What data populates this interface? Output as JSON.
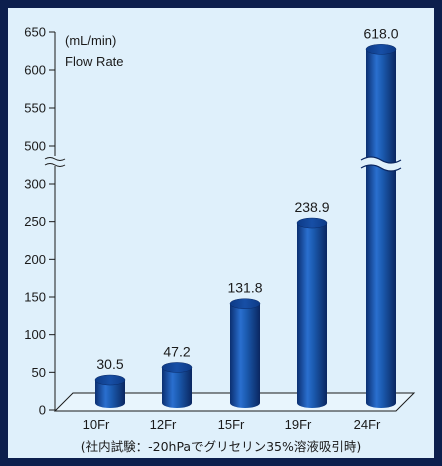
{
  "chart_data": {
    "type": "bar",
    "unit": "(mL/min)",
    "ylabel": "Flow Rate",
    "categories": [
      "10Fr",
      "12Fr",
      "15Fr",
      "19Fr",
      "24Fr"
    ],
    "values": [
      30.5,
      47.2,
      131.8,
      238.9,
      618.0
    ],
    "value_labels": [
      "30.5",
      "47.2",
      "131.8",
      "238.9",
      "618.0"
    ],
    "yticks_lower": [
      0,
      50,
      100,
      150,
      200,
      250,
      300
    ],
    "yticks_upper": [
      500,
      550,
      600,
      650
    ],
    "axis_break": [
      300,
      500
    ],
    "grid": false,
    "bar_color": "#1b5bb0",
    "footnote": "(社内試験：-20hPaでグリセリン35%溶液吸引時)"
  }
}
